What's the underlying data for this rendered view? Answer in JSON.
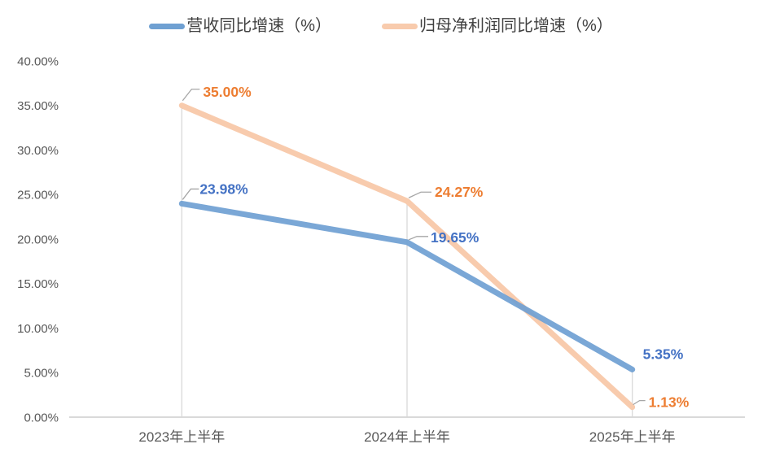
{
  "legend": {
    "items": [
      {
        "id": "revenue-yoy",
        "label": "营收同比增速（%）"
      },
      {
        "id": "net-profit-yoy",
        "label": "归母净利润同比增速（%）"
      }
    ]
  },
  "chart_data": {
    "type": "line",
    "title": "",
    "categories": [
      "2023年上半年",
      "2024年上半年",
      "2025年上半年"
    ],
    "series": [
      {
        "id": "revenue-yoy",
        "name": "营收同比增速（%）",
        "values": [
          23.98,
          19.65,
          5.35
        ],
        "labels": [
          "23.98%",
          "19.65%",
          "5.35%"
        ],
        "line_color": "#6FA0D2",
        "label_color": "#4472C4"
      },
      {
        "id": "net-profit-yoy",
        "name": "归母净利润同比增速（%）",
        "values": [
          35.0,
          24.27,
          1.13
        ],
        "labels": [
          "35.00%",
          "24.27%",
          "1.13%"
        ],
        "line_color": "#F8CBAD",
        "label_color": "#ED7D31"
      }
    ],
    "y_axis": {
      "min": 0,
      "max": 40,
      "step": 5,
      "tick_labels": [
        "0.00%",
        "5.00%",
        "10.00%",
        "15.00%",
        "20.00%",
        "25.00%",
        "30.00%",
        "35.00%",
        "40.00%"
      ]
    },
    "x_axis": {
      "tick_labels": [
        "2023年上半年",
        "2024年上半年",
        "2025年上半年"
      ]
    },
    "legend_position": "top",
    "grid": false,
    "drop_lines": true,
    "ylim": [
      0,
      40
    ]
  },
  "colors": {
    "background": "#FFFFFF",
    "axis_line": "#D9D9D9",
    "drop_line": "#D9D9D9",
    "leader_line": "#A6A6A6",
    "tick_text": "#595959",
    "legend_text": "#404040",
    "series_blue": "#6FA0D2",
    "series_orange": "#F8CBAD",
    "label_blue": "#4472C4",
    "label_orange": "#ED7D31"
  }
}
